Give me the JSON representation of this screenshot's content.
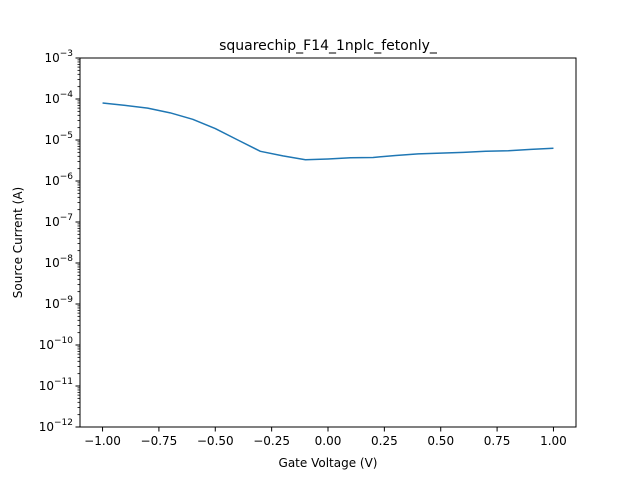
{
  "chart_data": {
    "type": "line",
    "title": "squarechip_F14_1nplc_fetonly_",
    "xlabel": "Gate Voltage (V)",
    "ylabel": "Source Current (A)",
    "xlim": [
      -1.1,
      1.1
    ],
    "ylim": [
      1e-12,
      0.001
    ],
    "yscale": "log",
    "grid": false,
    "line_color": "#1f77b4",
    "xticks": [
      -1.0,
      -0.75,
      -0.5,
      -0.25,
      0.0,
      0.25,
      0.5,
      0.75,
      1.0
    ],
    "xtick_labels": [
      "−1.00",
      "−0.75",
      "−0.50",
      "−0.25",
      "0.00",
      "0.25",
      "0.50",
      "0.75",
      "1.00"
    ],
    "ytick_exponents": [
      -12,
      -11,
      -10,
      -9,
      -8,
      -7,
      -6,
      -5,
      -4,
      -3
    ],
    "ytick_labels": [
      "−12",
      "−11",
      "−10",
      "−9",
      "−8",
      "−7",
      "−6",
      "−5",
      "−4",
      "−3"
    ],
    "ytick_base": "10",
    "series": [
      {
        "x": [
          -1.0,
          -0.9,
          -0.8,
          -0.7,
          -0.6,
          -0.5,
          -0.4,
          -0.3,
          -0.2,
          -0.1,
          0.0,
          0.1,
          0.2,
          0.3,
          0.4,
          0.5,
          0.6,
          0.7,
          0.8,
          0.9,
          1.0
        ],
        "values": [
          8e-05,
          7e-05,
          6e-05,
          4.6e-05,
          3.2e-05,
          1.9e-05,
          1e-05,
          5.3e-06,
          4.1e-06,
          3.3e-06,
          3.45e-06,
          3.7e-06,
          3.75e-06,
          4.2e-06,
          4.6e-06,
          4.8e-06,
          5e-06,
          5.3e-06,
          5.45e-06,
          5.9e-06,
          6.3e-06
        ]
      }
    ]
  }
}
